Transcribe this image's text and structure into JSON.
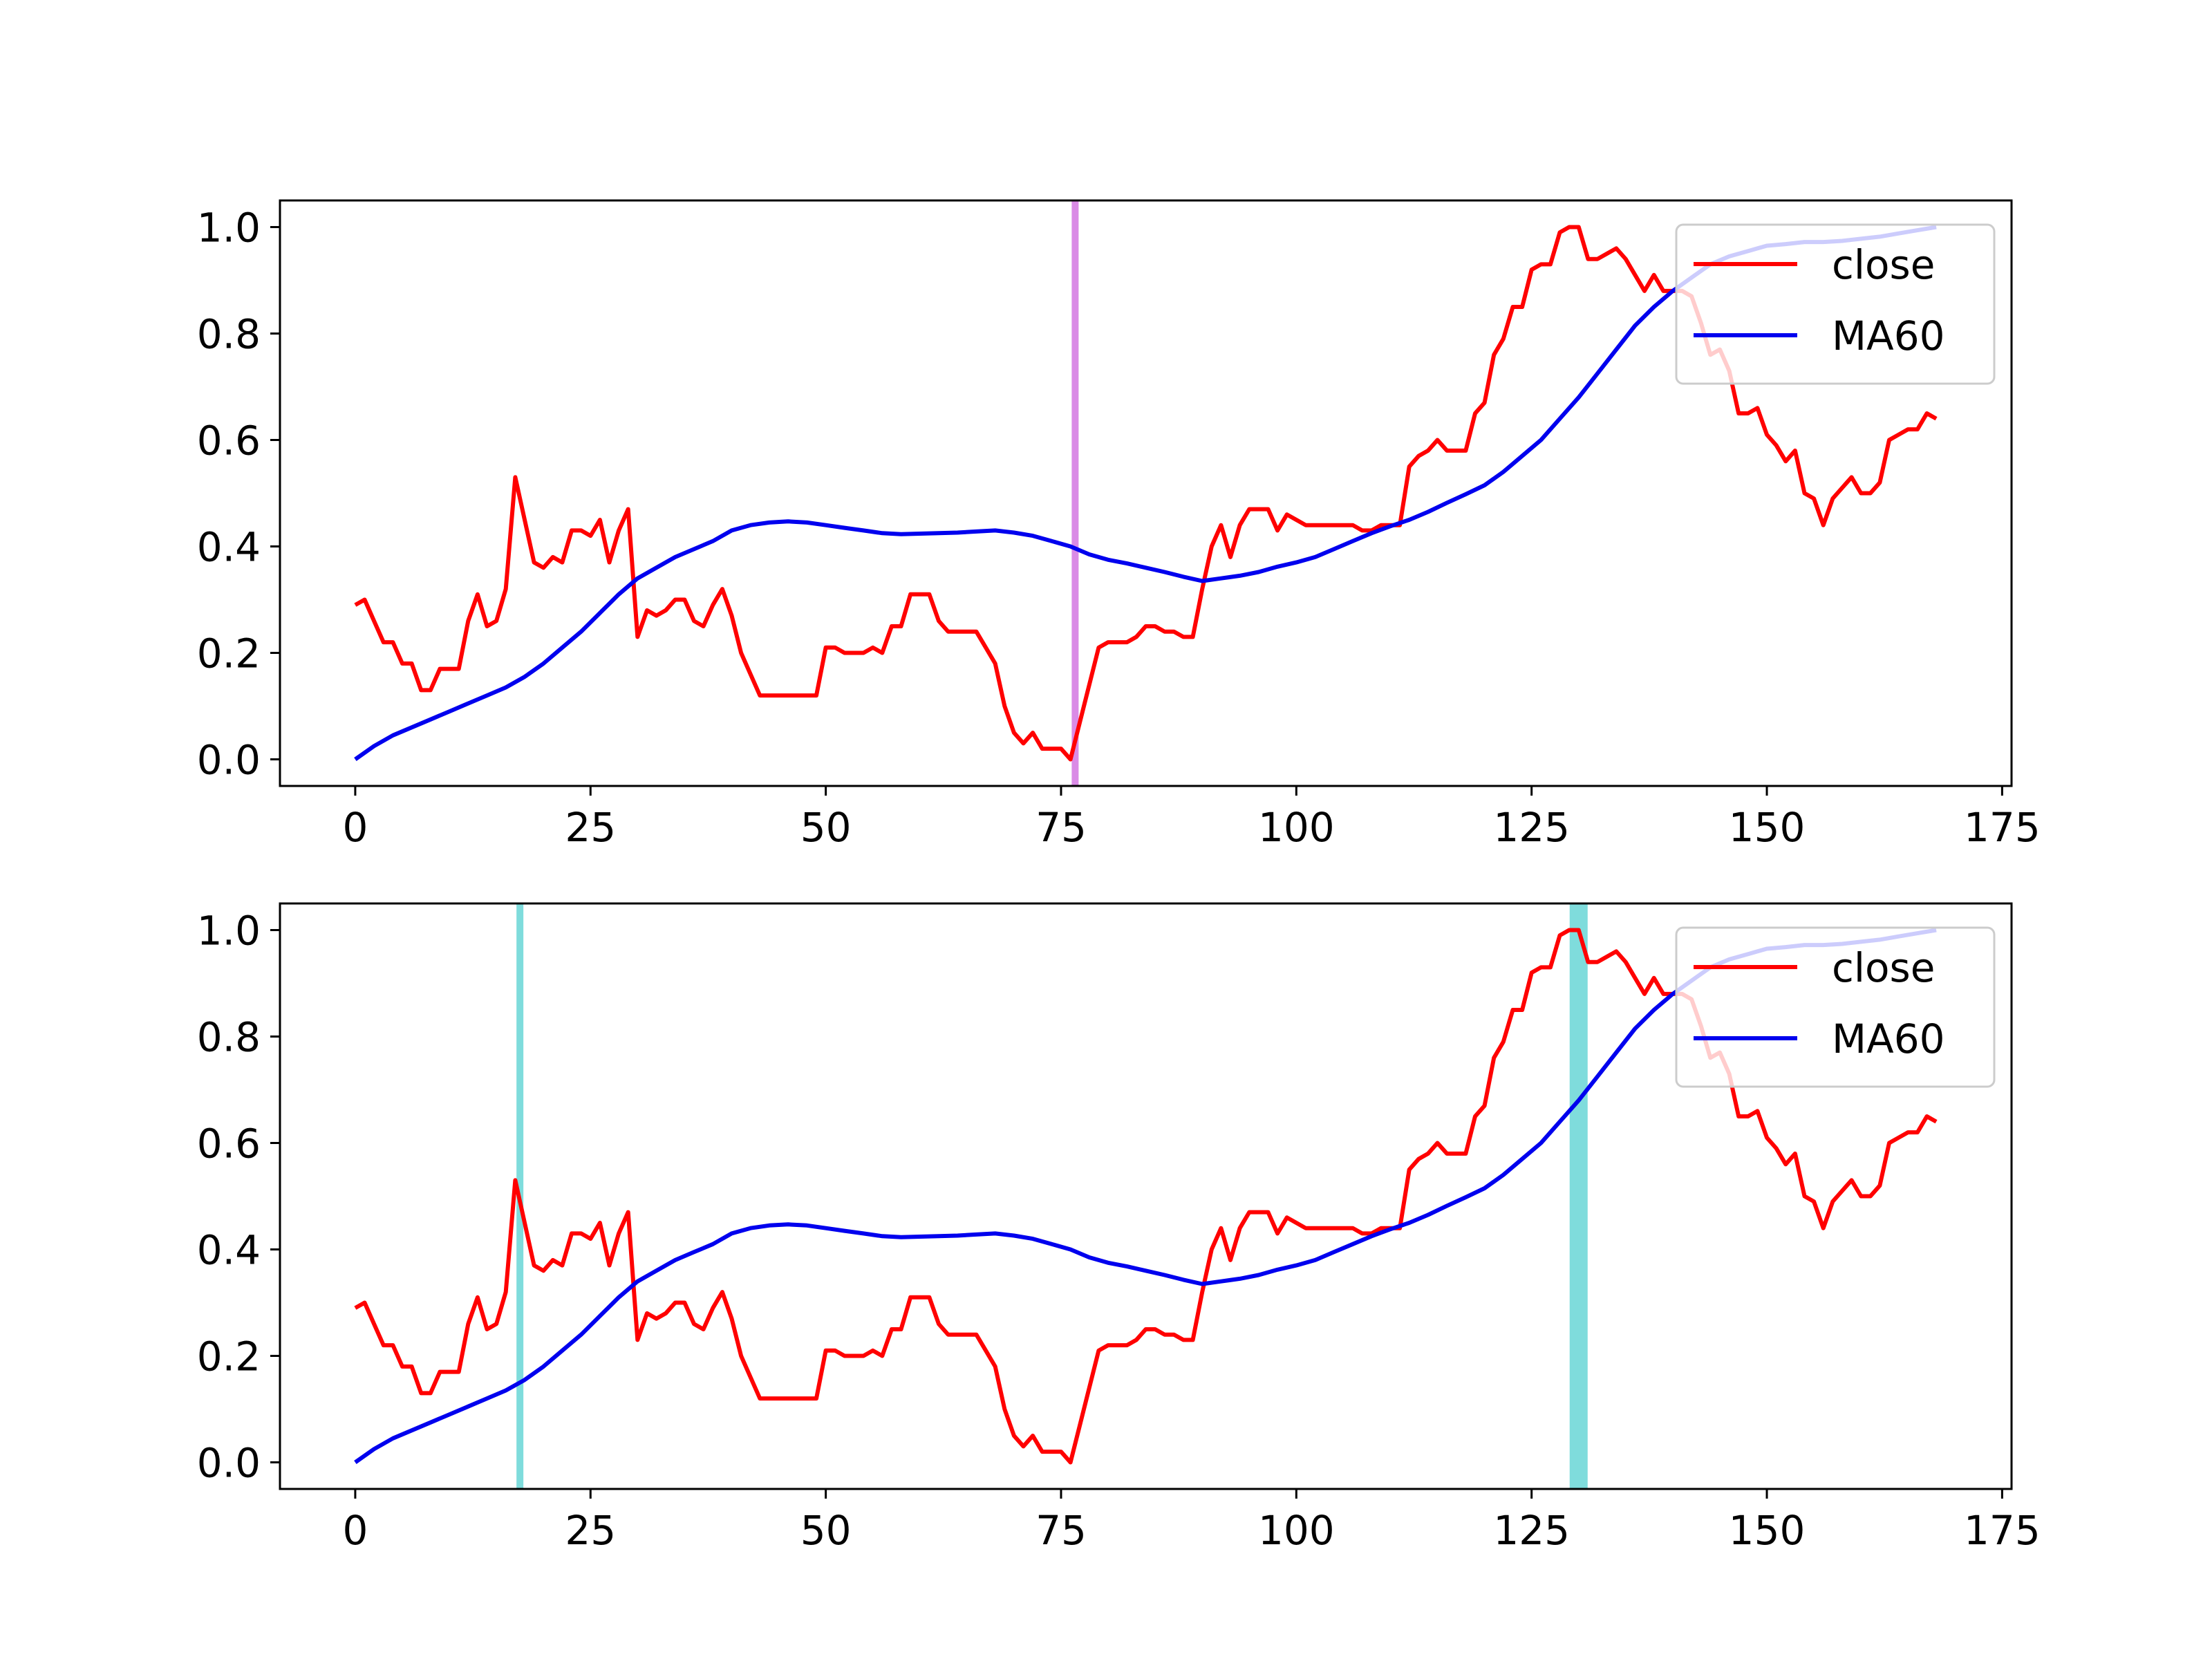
{
  "chart_data": [
    {
      "type": "line",
      "title": "",
      "xlabel": "",
      "ylabel": "",
      "xlim": [
        -8,
        176
      ],
      "ylim": [
        -0.05,
        1.05
      ],
      "xticks": [
        "0",
        "25",
        "50",
        "75",
        "100",
        "125",
        "150",
        "175"
      ],
      "yticks": [
        "0.0",
        "0.2",
        "0.4",
        "0.6",
        "0.8",
        "1.0"
      ],
      "grid": false,
      "legend_position": "upper right",
      "markers": [
        {
          "x": 76.5,
          "color": "#da8be6"
        }
      ],
      "series_ref": [
        "close",
        "MA60"
      ]
    },
    {
      "type": "line",
      "title": "",
      "xlabel": "",
      "ylabel": "",
      "xlim": [
        -8,
        176
      ],
      "ylim": [
        -0.05,
        1.05
      ],
      "xticks": [
        "0",
        "25",
        "50",
        "75",
        "100",
        "125",
        "150",
        "175"
      ],
      "yticks": [
        "0.0",
        "0.2",
        "0.4",
        "0.6",
        "0.8",
        "1.0"
      ],
      "grid": false,
      "legend_position": "upper right",
      "markers": [
        {
          "x": 17.5,
          "color": "#7fdcdc"
        },
        {
          "x": 130,
          "color": "#7fdcdc",
          "wide": true
        }
      ],
      "series_ref": [
        "close",
        "MA60"
      ]
    }
  ],
  "series": {
    "close": {
      "name": "close",
      "color": "#ff0000",
      "points": [
        [
          0,
          0.29
        ],
        [
          1,
          0.3
        ],
        [
          2,
          0.26
        ],
        [
          3,
          0.22
        ],
        [
          4,
          0.22
        ],
        [
          5,
          0.18
        ],
        [
          6,
          0.18
        ],
        [
          7,
          0.13
        ],
        [
          8,
          0.13
        ],
        [
          9,
          0.17
        ],
        [
          10,
          0.17
        ],
        [
          11,
          0.17
        ],
        [
          12,
          0.26
        ],
        [
          13,
          0.31
        ],
        [
          14,
          0.25
        ],
        [
          15,
          0.26
        ],
        [
          16,
          0.32
        ],
        [
          17,
          0.53
        ],
        [
          18,
          0.45
        ],
        [
          19,
          0.37
        ],
        [
          20,
          0.36
        ],
        [
          21,
          0.38
        ],
        [
          22,
          0.37
        ],
        [
          23,
          0.43
        ],
        [
          24,
          0.43
        ],
        [
          25,
          0.42
        ],
        [
          26,
          0.45
        ],
        [
          27,
          0.37
        ],
        [
          28,
          0.43
        ],
        [
          29,
          0.47
        ],
        [
          30,
          0.23
        ],
        [
          31,
          0.28
        ],
        [
          32,
          0.27
        ],
        [
          33,
          0.28
        ],
        [
          34,
          0.3
        ],
        [
          35,
          0.3
        ],
        [
          36,
          0.26
        ],
        [
          37,
          0.25
        ],
        [
          38,
          0.29
        ],
        [
          39,
          0.32
        ],
        [
          40,
          0.27
        ],
        [
          41,
          0.2
        ],
        [
          42,
          0.16
        ],
        [
          43,
          0.12
        ],
        [
          44,
          0.12
        ],
        [
          45,
          0.12
        ],
        [
          46,
          0.12
        ],
        [
          47,
          0.12
        ],
        [
          48,
          0.12
        ],
        [
          49,
          0.12
        ],
        [
          50,
          0.21
        ],
        [
          51,
          0.21
        ],
        [
          52,
          0.2
        ],
        [
          53,
          0.2
        ],
        [
          54,
          0.2
        ],
        [
          55,
          0.21
        ],
        [
          56,
          0.2
        ],
        [
          57,
          0.25
        ],
        [
          58,
          0.25
        ],
        [
          59,
          0.31
        ],
        [
          60,
          0.31
        ],
        [
          61,
          0.31
        ],
        [
          62,
          0.26
        ],
        [
          63,
          0.24
        ],
        [
          64,
          0.24
        ],
        [
          65,
          0.24
        ],
        [
          66,
          0.24
        ],
        [
          67,
          0.21
        ],
        [
          68,
          0.18
        ],
        [
          69,
          0.1
        ],
        [
          70,
          0.05
        ],
        [
          71,
          0.03
        ],
        [
          72,
          0.05
        ],
        [
          73,
          0.02
        ],
        [
          74,
          0.02
        ],
        [
          75,
          0.02
        ],
        [
          76,
          0.0
        ],
        [
          77,
          0.07
        ],
        [
          78,
          0.14
        ],
        [
          79,
          0.21
        ],
        [
          80,
          0.22
        ],
        [
          81,
          0.22
        ],
        [
          82,
          0.22
        ],
        [
          83,
          0.23
        ],
        [
          84,
          0.25
        ],
        [
          85,
          0.25
        ],
        [
          86,
          0.24
        ],
        [
          87,
          0.24
        ],
        [
          88,
          0.23
        ],
        [
          89,
          0.23
        ],
        [
          90,
          0.32
        ],
        [
          91,
          0.4
        ],
        [
          92,
          0.44
        ],
        [
          93,
          0.38
        ],
        [
          94,
          0.44
        ],
        [
          95,
          0.47
        ],
        [
          96,
          0.47
        ],
        [
          97,
          0.47
        ],
        [
          98,
          0.43
        ],
        [
          99,
          0.46
        ],
        [
          100,
          0.45
        ],
        [
          101,
          0.44
        ],
        [
          102,
          0.44
        ],
        [
          103,
          0.44
        ],
        [
          104,
          0.44
        ],
        [
          105,
          0.44
        ],
        [
          106,
          0.44
        ],
        [
          107,
          0.43
        ],
        [
          108,
          0.43
        ],
        [
          109,
          0.44
        ],
        [
          110,
          0.44
        ],
        [
          111,
          0.44
        ],
        [
          112,
          0.55
        ],
        [
          113,
          0.57
        ],
        [
          114,
          0.58
        ],
        [
          115,
          0.6
        ],
        [
          116,
          0.58
        ],
        [
          117,
          0.58
        ],
        [
          118,
          0.58
        ],
        [
          119,
          0.65
        ],
        [
          120,
          0.67
        ],
        [
          121,
          0.76
        ],
        [
          122,
          0.79
        ],
        [
          123,
          0.85
        ],
        [
          124,
          0.85
        ],
        [
          125,
          0.92
        ],
        [
          126,
          0.93
        ],
        [
          127,
          0.93
        ],
        [
          128,
          0.99
        ],
        [
          129,
          1.0
        ],
        [
          130,
          1.0
        ],
        [
          131,
          0.94
        ],
        [
          132,
          0.94
        ],
        [
          133,
          0.95
        ],
        [
          134,
          0.96
        ],
        [
          135,
          0.94
        ],
        [
          136,
          0.91
        ],
        [
          137,
          0.88
        ],
        [
          138,
          0.91
        ],
        [
          139,
          0.88
        ],
        [
          140,
          0.88
        ],
        [
          141,
          0.88
        ],
        [
          142,
          0.87
        ],
        [
          143,
          0.82
        ],
        [
          144,
          0.76
        ],
        [
          145,
          0.77
        ],
        [
          146,
          0.73
        ],
        [
          147,
          0.65
        ],
        [
          148,
          0.65
        ],
        [
          149,
          0.66
        ],
        [
          150,
          0.61
        ],
        [
          151,
          0.59
        ],
        [
          152,
          0.56
        ],
        [
          153,
          0.58
        ],
        [
          154,
          0.5
        ],
        [
          155,
          0.49
        ],
        [
          156,
          0.44
        ],
        [
          157,
          0.49
        ],
        [
          158,
          0.51
        ],
        [
          159,
          0.53
        ],
        [
          160,
          0.5
        ],
        [
          161,
          0.5
        ],
        [
          162,
          0.52
        ],
        [
          163,
          0.6
        ],
        [
          164,
          0.61
        ],
        [
          165,
          0.62
        ],
        [
          166,
          0.62
        ],
        [
          167,
          0.65
        ],
        [
          168,
          0.64
        ]
      ]
    },
    "ma60": {
      "name": "MA60",
      "color": "#0000ee",
      "points": [
        [
          0,
          0.0
        ],
        [
          2,
          0.025
        ],
        [
          4,
          0.045
        ],
        [
          6,
          0.06
        ],
        [
          8,
          0.075
        ],
        [
          10,
          0.09
        ],
        [
          12,
          0.105
        ],
        [
          14,
          0.12
        ],
        [
          16,
          0.135
        ],
        [
          18,
          0.155
        ],
        [
          20,
          0.18
        ],
        [
          22,
          0.21
        ],
        [
          24,
          0.24
        ],
        [
          26,
          0.275
        ],
        [
          28,
          0.31
        ],
        [
          30,
          0.34
        ],
        [
          32,
          0.36
        ],
        [
          34,
          0.38
        ],
        [
          36,
          0.395
        ],
        [
          38,
          0.41
        ],
        [
          40,
          0.43
        ],
        [
          42,
          0.44
        ],
        [
          44,
          0.445
        ],
        [
          46,
          0.447
        ],
        [
          48,
          0.445
        ],
        [
          50,
          0.44
        ],
        [
          52,
          0.435
        ],
        [
          54,
          0.43
        ],
        [
          56,
          0.425
        ],
        [
          58,
          0.423
        ],
        [
          60,
          0.424
        ],
        [
          62,
          0.425
        ],
        [
          64,
          0.426
        ],
        [
          66,
          0.428
        ],
        [
          68,
          0.43
        ],
        [
          70,
          0.426
        ],
        [
          72,
          0.42
        ],
        [
          74,
          0.41
        ],
        [
          76,
          0.4
        ],
        [
          78,
          0.385
        ],
        [
          80,
          0.375
        ],
        [
          82,
          0.368
        ],
        [
          84,
          0.36
        ],
        [
          86,
          0.352
        ],
        [
          88,
          0.343
        ],
        [
          90,
          0.335
        ],
        [
          92,
          0.34
        ],
        [
          94,
          0.345
        ],
        [
          96,
          0.352
        ],
        [
          98,
          0.362
        ],
        [
          100,
          0.37
        ],
        [
          102,
          0.38
        ],
        [
          104,
          0.395
        ],
        [
          106,
          0.41
        ],
        [
          108,
          0.425
        ],
        [
          110,
          0.438
        ],
        [
          112,
          0.45
        ],
        [
          114,
          0.465
        ],
        [
          116,
          0.482
        ],
        [
          118,
          0.498
        ],
        [
          120,
          0.515
        ],
        [
          122,
          0.54
        ],
        [
          124,
          0.57
        ],
        [
          126,
          0.6
        ],
        [
          128,
          0.64
        ],
        [
          130,
          0.68
        ],
        [
          132,
          0.725
        ],
        [
          134,
          0.77
        ],
        [
          136,
          0.815
        ],
        [
          138,
          0.85
        ],
        [
          140,
          0.88
        ],
        [
          142,
          0.905
        ],
        [
          144,
          0.93
        ],
        [
          146,
          0.945
        ],
        [
          148,
          0.955
        ],
        [
          150,
          0.965
        ],
        [
          152,
          0.968
        ],
        [
          154,
          0.972
        ],
        [
          156,
          0.972
        ],
        [
          158,
          0.974
        ],
        [
          160,
          0.978
        ],
        [
          162,
          0.982
        ],
        [
          164,
          0.988
        ],
        [
          166,
          0.994
        ],
        [
          168,
          1.0
        ]
      ]
    }
  },
  "legend": {
    "close_label": "close",
    "ma_label": "MA60"
  }
}
